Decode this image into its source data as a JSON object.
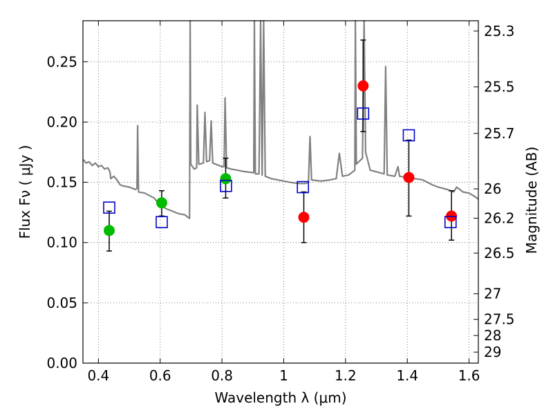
{
  "chart_data": {
    "type": "scatter",
    "xlabel": "Wavelength  λ (μm)",
    "ylabel": "Flux  Fν  ( μJy )",
    "y2label": "Magnitude (AB)",
    "xlim": [
      0.35,
      1.63
    ],
    "ylim": [
      0.0,
      0.284
    ],
    "grid": true,
    "x_ticks": [
      0.4,
      0.6,
      0.8,
      1.0,
      1.2,
      1.4,
      1.6
    ],
    "x_tick_labels": [
      "0.4",
      "0.6",
      "0.8",
      "1",
      "1.2",
      "1.4",
      "1.6"
    ],
    "y_ticks": [
      0.0,
      0.05,
      0.1,
      0.15,
      0.2,
      0.25
    ],
    "y_tick_labels": [
      "0.00",
      "0.05",
      "0.10",
      "0.15",
      "0.20",
      "0.25"
    ],
    "mag_ticks": [
      25.3,
      25.5,
      25.7,
      26,
      26.2,
      26.5,
      27,
      27.5,
      28,
      29
    ],
    "mag_tick_labels": [
      "25.3",
      "25.5",
      "25.7",
      "26",
      "26.2",
      "26.5",
      "27",
      "27.5",
      "28",
      "29"
    ],
    "colors": {
      "model": "#808080",
      "green": "#00bb00",
      "red": "#ff0000",
      "box": "#0000cc",
      "errorbar": "#000000",
      "grid": "#555555"
    },
    "model_spectrum": [
      [
        0.35,
        0.169
      ],
      [
        0.36,
        0.166
      ],
      [
        0.37,
        0.167
      ],
      [
        0.38,
        0.164
      ],
      [
        0.39,
        0.166
      ],
      [
        0.4,
        0.163
      ],
      [
        0.41,
        0.164
      ],
      [
        0.42,
        0.161
      ],
      [
        0.43,
        0.162
      ],
      [
        0.435,
        0.16
      ],
      [
        0.438,
        0.158
      ],
      [
        0.44,
        0.153
      ],
      [
        0.45,
        0.155
      ],
      [
        0.46,
        0.152
      ],
      [
        0.47,
        0.148
      ],
      [
        0.48,
        0.147
      ],
      [
        0.5,
        0.146
      ],
      [
        0.51,
        0.145
      ],
      [
        0.52,
        0.144
      ],
      [
        0.525,
        0.145
      ],
      [
        0.527,
        0.197
      ],
      [
        0.53,
        0.142
      ],
      [
        0.55,
        0.141
      ],
      [
        0.58,
        0.137
      ],
      [
        0.6,
        0.131
      ],
      [
        0.62,
        0.128
      ],
      [
        0.64,
        0.126
      ],
      [
        0.66,
        0.124
      ],
      [
        0.68,
        0.123
      ],
      [
        0.69,
        0.121
      ],
      [
        0.695,
        0.12
      ],
      [
        0.697,
        0.284
      ],
      [
        0.699,
        0.165
      ],
      [
        0.71,
        0.161
      ],
      [
        0.718,
        0.162
      ],
      [
        0.72,
        0.214
      ],
      [
        0.725,
        0.165
      ],
      [
        0.74,
        0.166
      ],
      [
        0.745,
        0.208
      ],
      [
        0.75,
        0.167
      ],
      [
        0.76,
        0.168
      ],
      [
        0.765,
        0.201
      ],
      [
        0.77,
        0.166
      ],
      [
        0.79,
        0.164
      ],
      [
        0.8,
        0.163
      ],
      [
        0.807,
        0.163
      ],
      [
        0.81,
        0.22
      ],
      [
        0.815,
        0.162
      ],
      [
        0.83,
        0.161
      ],
      [
        0.85,
        0.16
      ],
      [
        0.87,
        0.159
      ],
      [
        0.9,
        0.158
      ],
      [
        0.903,
        0.158
      ],
      [
        0.905,
        0.284
      ],
      [
        0.908,
        0.157
      ],
      [
        0.92,
        0.157
      ],
      [
        0.925,
        0.284
      ],
      [
        0.93,
        0.156
      ],
      [
        0.935,
        0.284
      ],
      [
        0.94,
        0.155
      ],
      [
        0.96,
        0.153
      ],
      [
        0.98,
        0.152
      ],
      [
        1.0,
        0.151
      ],
      [
        1.02,
        0.15
      ],
      [
        1.05,
        0.149
      ],
      [
        1.07,
        0.149
      ],
      [
        1.08,
        0.15
      ],
      [
        1.085,
        0.188
      ],
      [
        1.09,
        0.152
      ],
      [
        1.12,
        0.151
      ],
      [
        1.15,
        0.152
      ],
      [
        1.17,
        0.153
      ],
      [
        1.18,
        0.174
      ],
      [
        1.19,
        0.155
      ],
      [
        1.21,
        0.156
      ],
      [
        1.22,
        0.158
      ],
      [
        1.23,
        0.16
      ],
      [
        1.232,
        0.284
      ],
      [
        1.235,
        0.165
      ],
      [
        1.255,
        0.17
      ],
      [
        1.26,
        0.284
      ],
      [
        1.265,
        0.175
      ],
      [
        1.28,
        0.16
      ],
      [
        1.31,
        0.158
      ],
      [
        1.325,
        0.157
      ],
      [
        1.33,
        0.246
      ],
      [
        1.335,
        0.156
      ],
      [
        1.36,
        0.155
      ],
      [
        1.37,
        0.163
      ],
      [
        1.375,
        0.155
      ],
      [
        1.4,
        0.154
      ],
      [
        1.45,
        0.152
      ],
      [
        1.48,
        0.148
      ],
      [
        1.5,
        0.146
      ],
      [
        1.53,
        0.144
      ],
      [
        1.55,
        0.142
      ],
      [
        1.56,
        0.146
      ],
      [
        1.58,
        0.142
      ],
      [
        1.6,
        0.141
      ],
      [
        1.62,
        0.138
      ],
      [
        1.63,
        0.136
      ]
    ],
    "series": [
      {
        "marker": "filled-circle",
        "color": "#00bb00",
        "points": [
          {
            "x": 0.435,
            "y": 0.11,
            "yerr": [
              0.017,
              0.016
            ]
          },
          {
            "x": 0.605,
            "y": 0.133,
            "yerr": [
              0.011,
              0.01
            ]
          },
          {
            "x": 0.812,
            "y": 0.153,
            "yerr": [
              0.016,
              0.017
            ]
          }
        ]
      },
      {
        "marker": "filled-circle",
        "color": "#ff0000",
        "points": [
          {
            "x": 1.065,
            "y": 0.121,
            "yerr": [
              0.021,
              0.021
            ]
          },
          {
            "x": 1.257,
            "y": 0.23,
            "yerr": [
              0.038,
              0.038
            ]
          },
          {
            "x": 1.405,
            "y": 0.154,
            "yerr": [
              0.032,
              0.031
            ]
          },
          {
            "x": 1.543,
            "y": 0.122,
            "yerr": [
              0.02,
              0.021
            ]
          }
        ]
      },
      {
        "marker": "open-square",
        "color": "#0000cc",
        "points": [
          {
            "x": 0.435,
            "y": 0.129
          },
          {
            "x": 0.605,
            "y": 0.117
          },
          {
            "x": 0.813,
            "y": 0.147
          },
          {
            "x": 1.062,
            "y": 0.146
          },
          {
            "x": 1.257,
            "y": 0.207
          },
          {
            "x": 1.405,
            "y": 0.189
          },
          {
            "x": 1.54,
            "y": 0.117
          }
        ]
      }
    ]
  }
}
